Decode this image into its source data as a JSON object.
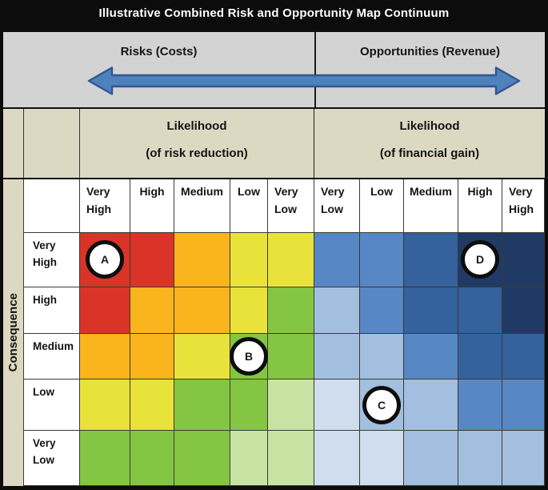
{
  "title": "Illustrative Combined Risk and Opportunity Map Continuum",
  "banner": {
    "risks": "Risks (Costs)",
    "opportunities": "Opportunities (Revenue)"
  },
  "likelihood_left": {
    "line1": "Likelihood",
    "line2": "(of risk reduction)"
  },
  "likelihood_right": {
    "line1": "Likelihood",
    "line2": "(of financial gain)"
  },
  "consequence_axis_label": "Consequence",
  "columns": [
    {
      "line1": "Very",
      "line2": "High"
    },
    {
      "line1": "High",
      "line2": ""
    },
    {
      "line1": "Medium",
      "line2": ""
    },
    {
      "line1": "Low",
      "line2": ""
    },
    {
      "line1": "Very",
      "line2": "Low"
    },
    {
      "line1": "Very",
      "line2": "Low"
    },
    {
      "line1": "Low",
      "line2": ""
    },
    {
      "line1": "Medium",
      "line2": ""
    },
    {
      "line1": "High",
      "line2": ""
    },
    {
      "line1": "Very",
      "line2": "High"
    }
  ],
  "rows": [
    {
      "line1": "Very",
      "line2": "High"
    },
    {
      "line1": "High",
      "line2": ""
    },
    {
      "line1": "Medium",
      "line2": ""
    },
    {
      "line1": "Low",
      "line2": ""
    },
    {
      "line1": "Very",
      "line2": "Low"
    }
  ],
  "arrow_color": {
    "fill": "#4f81bd",
    "stroke": "#2e5894"
  },
  "chart_data": {
    "type": "heatmap",
    "title": "Illustrative Combined Risk and Opportunity Map Continuum",
    "x_axis": {
      "left": {
        "group": "Risks (Costs)",
        "title": "Likelihood (of risk reduction)",
        "categories": [
          "Very High",
          "High",
          "Medium",
          "Low",
          "Very Low"
        ]
      },
      "right": {
        "group": "Opportunities (Revenue)",
        "title": "Likelihood (of financial gain)",
        "categories": [
          "Very Low",
          "Low",
          "Medium",
          "High",
          "Very High"
        ]
      }
    },
    "y_axis": {
      "title": "Consequence",
      "categories": [
        "Very High",
        "High",
        "Medium",
        "Low",
        "Very Low"
      ]
    },
    "palette": {
      "red": "#da3327",
      "orange": "#f9b41e",
      "yellow": "#e8e23a",
      "green": "#85c544",
      "light-green": "#c8e3a3",
      "blue-1": "#cfddef",
      "blue-2": "#a2bfdf",
      "blue-3": "#5787c4",
      "blue-4": "#35619c",
      "blue-5": "#203a66"
    },
    "grid": [
      [
        "red",
        "red",
        "orange",
        "yellow",
        "yellow",
        "blue-3",
        "blue-3",
        "blue-4",
        "blue-5",
        "blue-5"
      ],
      [
        "red",
        "orange",
        "orange",
        "yellow",
        "green",
        "blue-2",
        "blue-3",
        "blue-4",
        "blue-4",
        "blue-5"
      ],
      [
        "orange",
        "orange",
        "yellow",
        "green",
        "green",
        "blue-2",
        "blue-2",
        "blue-3",
        "blue-4",
        "blue-4"
      ],
      [
        "yellow",
        "yellow",
        "green",
        "green",
        "light-green",
        "blue-1",
        "blue-2",
        "blue-2",
        "blue-3",
        "blue-3"
      ],
      [
        "green",
        "green",
        "green",
        "light-green",
        "light-green",
        "blue-1",
        "blue-1",
        "blue-2",
        "blue-2",
        "blue-2"
      ]
    ],
    "markers": [
      {
        "label": "A",
        "row_index": 0,
        "col_index": 0,
        "consequence": "Very High",
        "likelihood": "Very High",
        "side": "risks"
      },
      {
        "label": "B",
        "row_index": 2,
        "col_index": 3,
        "consequence": "Medium",
        "likelihood": "Low",
        "side": "risks"
      },
      {
        "label": "C",
        "row_index": 3,
        "col_index": 6,
        "consequence": "Low",
        "likelihood": "Low",
        "side": "opportunities"
      },
      {
        "label": "D",
        "row_index": 0,
        "col_index": 8,
        "consequence": "Very High",
        "likelihood": "High",
        "side": "opportunities"
      }
    ]
  }
}
